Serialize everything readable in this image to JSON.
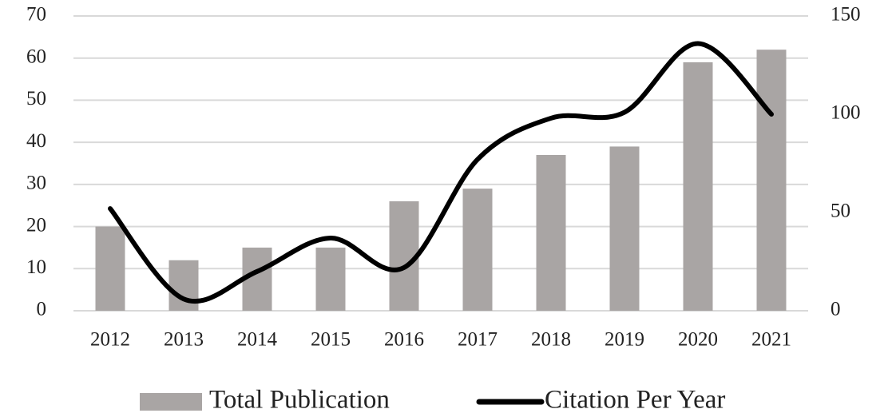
{
  "chart_data": {
    "type": "bar-line",
    "categories": [
      "2012",
      "2013",
      "2014",
      "2015",
      "2016",
      "2017",
      "2018",
      "2019",
      "2020",
      "2021"
    ],
    "series": [
      {
        "name": "Total Publication",
        "type": "bar",
        "color": "#a9a5a4",
        "values": [
          20,
          12,
          15,
          15,
          26,
          29,
          37,
          39,
          59,
          62
        ]
      },
      {
        "name": "Citation Per Year",
        "type": "line",
        "axis": "y2",
        "color": "#000000",
        "values": [
          52,
          6,
          20,
          37,
          22,
          77,
          98,
          101,
          136,
          100
        ]
      }
    ],
    "ylim": [
      0,
      70
    ],
    "yticks": [
      0,
      10,
      20,
      30,
      40,
      50,
      60,
      70
    ],
    "y2lim": [
      0,
      150
    ],
    "y2ticks": [
      0,
      50,
      100,
      150
    ],
    "grid": true,
    "legend": "bottom"
  }
}
